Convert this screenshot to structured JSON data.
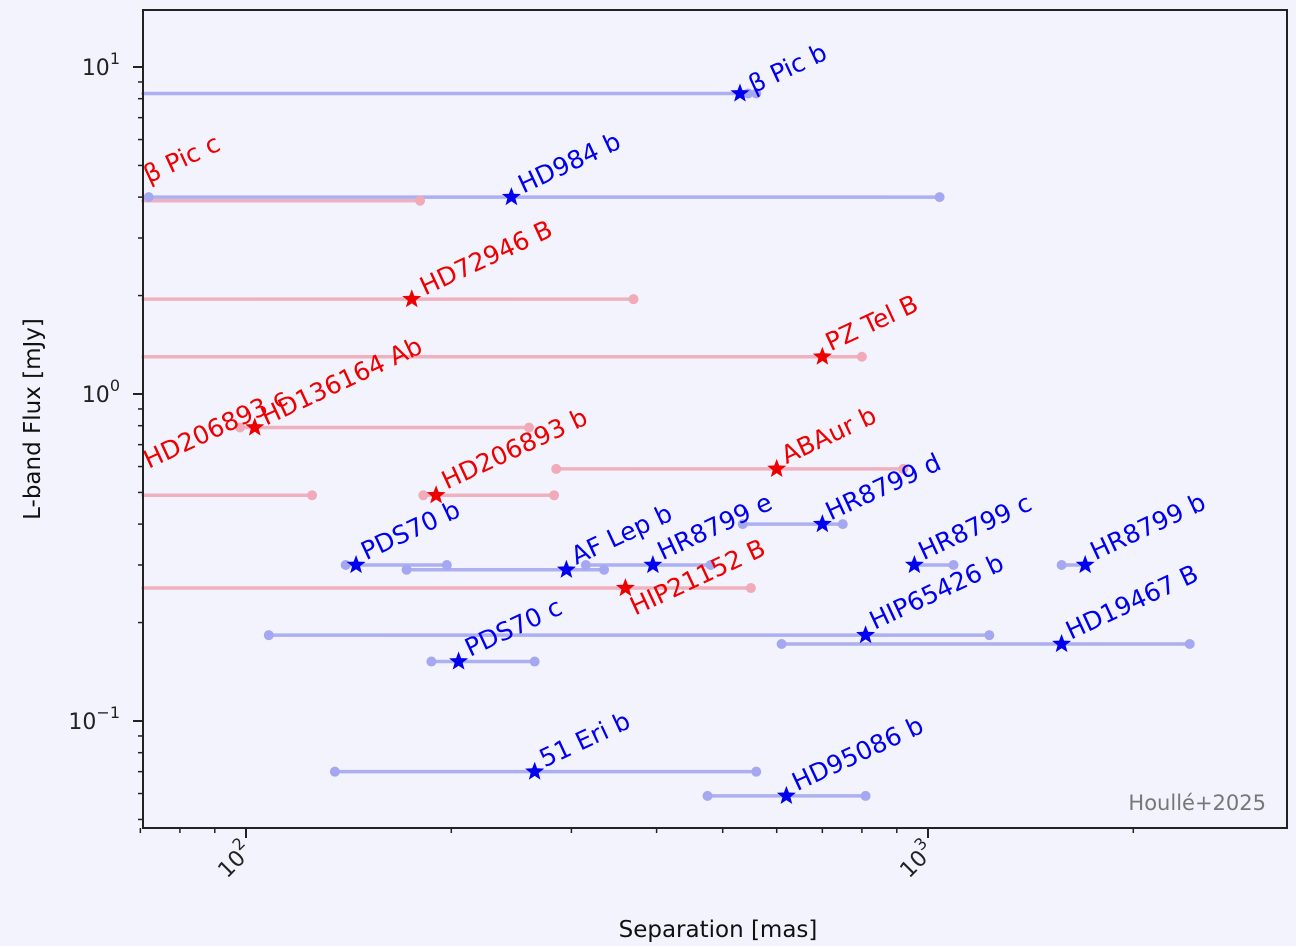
{
  "chart_data": {
    "type": "scatter",
    "xlabel": "Separation [mas]",
    "ylabel": "L-band Flux [mJy]",
    "x_scale": "log",
    "y_scale": "log",
    "xlim": [
      70,
      2650
    ],
    "ylim": [
      0.046,
      16
    ],
    "x_ticks": [
      {
        "value": 100,
        "base": "10",
        "exp": "2"
      },
      {
        "value": 1000,
        "base": "10",
        "exp": "3"
      }
    ],
    "y_ticks": [
      {
        "value": 0.1,
        "base": "10",
        "exp": "−1"
      },
      {
        "value": 1,
        "base": "10",
        "exp": "0"
      },
      {
        "value": 10,
        "base": "10",
        "exp": "1"
      }
    ],
    "credit": "Houllé+2025",
    "colors": {
      "blue": "#0000ee",
      "red": "#ee0000",
      "blue_range": "#a5a8f0",
      "red_range": "#f0aab8",
      "frame": "#222222"
    },
    "objects": [
      {
        "name": "β Pic b",
        "color": "blue",
        "sep": 530,
        "flux": 8.3,
        "range": [
          60,
          560
        ],
        "ends": [
          545,
          560
        ],
        "label_sep": 555,
        "label_flux": 8.3
      },
      {
        "name": "β Pic c",
        "color": "red",
        "sep": null,
        "flux": 3.9,
        "range": [
          60,
          180
        ],
        "ends": [
          180
        ],
        "label_sep": 72,
        "label_flux": 4.4
      },
      {
        "name": "HD984 b",
        "color": "blue",
        "sep": 245,
        "flux": 4.0,
        "range": [
          72,
          1040
        ],
        "ends": [
          72,
          1040
        ],
        "label_sep": 255,
        "label_flux": 4.1
      },
      {
        "name": "HD72946 B",
        "color": "red",
        "sep": 175,
        "flux": 1.95,
        "range": [
          60,
          370
        ],
        "ends": [
          370
        ],
        "label_sep": 183,
        "label_flux": 2.0
      },
      {
        "name": "PZ Tel B",
        "color": "red",
        "sep": 700,
        "flux": 1.3,
        "range": [
          60,
          800
        ],
        "ends": [
          800
        ],
        "label_sep": 720,
        "label_flux": 1.35
      },
      {
        "name": "HD136164 Ab",
        "color": "red",
        "sep": 103,
        "flux": 0.79,
        "range": [
          98,
          260
        ],
        "ends": [
          98,
          260
        ],
        "label_sep": 107,
        "label_flux": 0.8
      },
      {
        "name": "HD206893 c",
        "color": "red",
        "sep": null,
        "flux": null,
        "range": null,
        "ends": [],
        "label_sep": 72,
        "label_flux": 0.59
      },
      {
        "name": "HD206893 b",
        "color": "red",
        "sep": 190,
        "flux": 0.49,
        "range": [
          182,
          283
        ],
        "ends": [
          182,
          283
        ],
        "label_sep": 197,
        "label_flux": 0.51
      },
      {
        "name": "",
        "color": "red",
        "sep": null,
        "flux": 0.49,
        "range": [
          60,
          125
        ],
        "ends": [
          125
        ],
        "label_sep": null,
        "label_flux": null
      },
      {
        "name": "ABAur b",
        "color": "red",
        "sep": 600,
        "flux": 0.59,
        "range": [
          285,
          920
        ],
        "ends": [
          285,
          920
        ],
        "label_sep": 620,
        "label_flux": 0.61
      },
      {
        "name": "HR8799 d",
        "color": "blue",
        "sep": 700,
        "flux": 0.4,
        "range": [
          535,
          750
        ],
        "ends": [
          535,
          750
        ],
        "label_sep": 720,
        "label_flux": 0.41
      },
      {
        "name": "PDS70 b",
        "color": "blue",
        "sep": 145,
        "flux": 0.3,
        "range": [
          140,
          197
        ],
        "ends": [
          140,
          197
        ],
        "label_sep": 150,
        "label_flux": 0.31
      },
      {
        "name": "AF Lep b",
        "color": "blue",
        "sep": 295,
        "flux": 0.29,
        "range": [
          172,
          335
        ],
        "ends": [
          172,
          335
        ],
        "label_sep": 305,
        "label_flux": 0.3
      },
      {
        "name": "HR8799 e",
        "color": "blue",
        "sep": 395,
        "flux": 0.3,
        "range": [
          315,
          480
        ],
        "ends": [
          315,
          480
        ],
        "label_sep": 408,
        "label_flux": 0.31
      },
      {
        "name": "HR8799 c",
        "color": "blue",
        "sep": 955,
        "flux": 0.3,
        "range": [
          950,
          1090
        ],
        "ends": [
          1090
        ],
        "label_sep": 985,
        "label_flux": 0.31
      },
      {
        "name": "HR8799 b",
        "color": "blue",
        "sep": 1700,
        "flux": 0.3,
        "range": [
          1570,
          1700
        ],
        "ends": [
          1570
        ],
        "label_sep": 1760,
        "label_flux": 0.31
      },
      {
        "name": "HIP21152 B",
        "color": "red",
        "sep": 360,
        "flux": 0.255,
        "range": [
          60,
          550
        ],
        "ends": [
          550
        ],
        "label_sep": 372,
        "label_flux": 0.21
      },
      {
        "name": "HIP65426 b",
        "color": "blue",
        "sep": 810,
        "flux": 0.183,
        "range": [
          108,
          1230
        ],
        "ends": [
          108,
          1230
        ],
        "label_sep": 835,
        "label_flux": 0.19
      },
      {
        "name": "HD19467 B",
        "color": "blue",
        "sep": 1570,
        "flux": 0.172,
        "range": [
          610,
          2420
        ],
        "ends": [
          610,
          2420
        ],
        "label_sep": 1620,
        "label_flux": 0.177
      },
      {
        "name": "PDS70 c",
        "color": "blue",
        "sep": 205,
        "flux": 0.152,
        "range": [
          187,
          265
        ],
        "ends": [
          187,
          265
        ],
        "label_sep": 213,
        "label_flux": 0.157
      },
      {
        "name": "51 Eri b",
        "color": "blue",
        "sep": 265,
        "flux": 0.07,
        "range": [
          135,
          560
        ],
        "ends": [
          135,
          560
        ],
        "label_sep": 274,
        "label_flux": 0.072
      },
      {
        "name": "HD95086 b",
        "color": "blue",
        "sep": 620,
        "flux": 0.059,
        "range": [
          475,
          810
        ],
        "ends": [
          475,
          810
        ],
        "label_sep": 643,
        "label_flux": 0.061
      }
    ]
  }
}
